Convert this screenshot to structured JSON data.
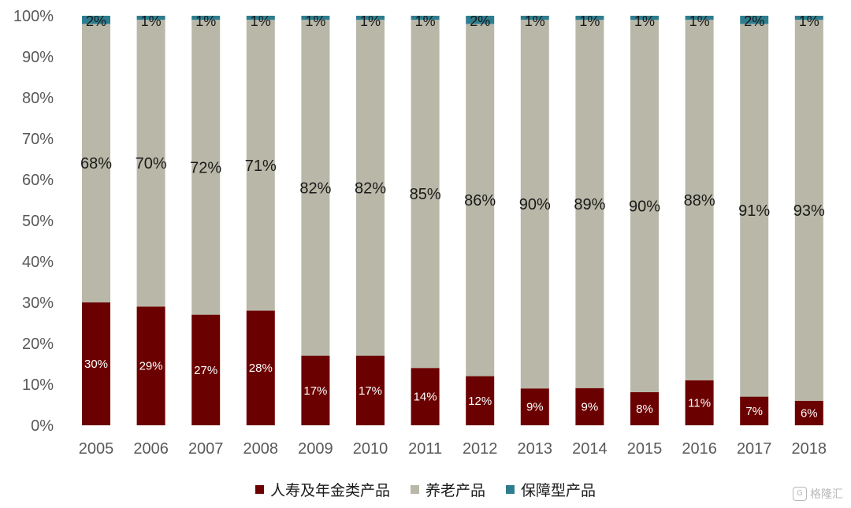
{
  "chart_data": {
    "type": "bar",
    "stacked": true,
    "categories": [
      "2005",
      "2006",
      "2007",
      "2008",
      "2009",
      "2010",
      "2011",
      "2012",
      "2013",
      "2014",
      "2015",
      "2016",
      "2017",
      "2018"
    ],
    "series": [
      {
        "name": "人寿及年金类产品",
        "values": [
          30,
          29,
          27,
          28,
          17,
          17,
          14,
          12,
          9,
          9,
          8,
          11,
          7,
          6
        ],
        "color": "#6b0000"
      },
      {
        "name": "养老产品",
        "values": [
          68,
          70,
          72,
          71,
          82,
          82,
          85,
          86,
          90,
          89,
          90,
          88,
          91,
          93
        ],
        "color": "#b9b8a8"
      },
      {
        "name": "保障型产品",
        "values": [
          2,
          1,
          1,
          1,
          1,
          1,
          1,
          2,
          1,
          1,
          1,
          1,
          2,
          1
        ],
        "color": "#2e7d8f"
      }
    ],
    "data_labels": [
      [
        "30%",
        "29%",
        "27%",
        "28%",
        "17%",
        "17%",
        "14%",
        "12%",
        "9%",
        "9%",
        "8%",
        "11%",
        "7%",
        "6%"
      ],
      [
        "68%",
        "70%",
        "72%",
        "71%",
        "82%",
        "82%",
        "85%",
        "86%",
        "90%",
        "89%",
        "90%",
        "88%",
        "91%",
        "93%"
      ],
      [
        "2%",
        "1%",
        "1%",
        "1%",
        "1%",
        "1%",
        "1%",
        "2%",
        "1%",
        "1%",
        "1%",
        "1%",
        "2%",
        "1%"
      ]
    ],
    "y_ticks": [
      "0%",
      "10%",
      "20%",
      "30%",
      "40%",
      "50%",
      "60%",
      "70%",
      "80%",
      "90%",
      "100%"
    ],
    "ylim": [
      0,
      100
    ],
    "grid": false,
    "legend_position": "bottom"
  },
  "watermark": {
    "icon": "G",
    "text": "格隆汇"
  }
}
